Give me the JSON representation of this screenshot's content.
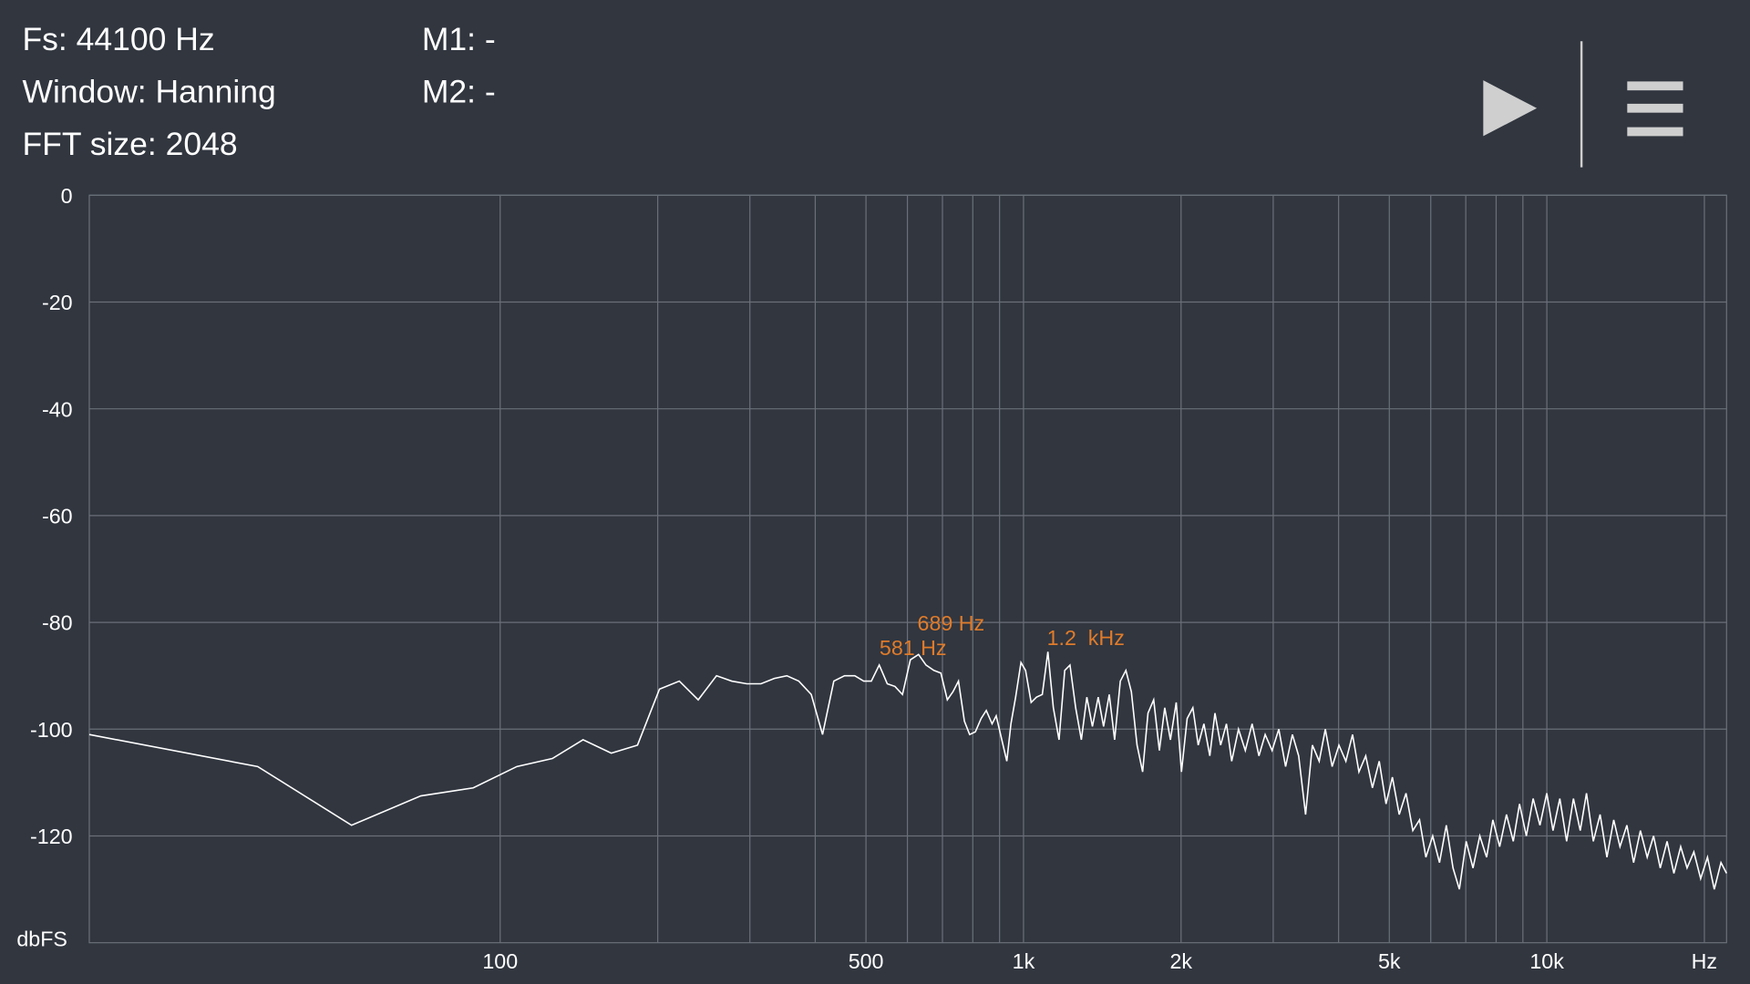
{
  "info": {
    "fs": "Fs: 44100 Hz",
    "window": "Window: Hanning",
    "fft_size": "FFT size: 2048",
    "m1": "M1: -",
    "m2": "M2: -"
  },
  "chart_data": {
    "type": "line",
    "color": "#ffffff",
    "log_x": true,
    "grid": true,
    "x_label": "Hz",
    "y_label": "dbFS",
    "xlim": [
      16.4,
      22050
    ],
    "ylim": [
      -140,
      0
    ],
    "xticks": [
      100,
      500,
      {
        "value": 1000,
        "label": "1k"
      },
      {
        "value": 2000,
        "label": "2k"
      },
      {
        "value": 5000,
        "label": "5k"
      },
      {
        "value": 10000,
        "label": "10k"
      }
    ],
    "xminor": [
      200,
      300,
      400,
      600,
      700,
      800,
      900,
      3000,
      4000,
      6000,
      7000,
      8000,
      9000,
      20000
    ],
    "yticks": [
      0,
      -20,
      -40,
      -60,
      -80,
      -100,
      -120
    ],
    "annotations": [
      "689 Hz",
      "581 Hz",
      "1.2  kHz"
    ],
    "x": [
      16.4,
      34.4,
      52,
      70.5,
      88.8,
      107.6,
      125.8,
      144,
      163,
      183,
      201.6,
      220,
      239,
      259,
      277,
      296,
      315,
      334,
      353,
      372,
      393,
      413,
      434,
      455,
      476,
      495,
      512,
      530,
      549,
      568,
      587,
      608,
      630,
      651,
      674,
      695,
      715,
      733,
      751,
      771,
      789,
      809,
      830,
      849,
      871,
      887,
      929,
      946,
      966,
      989,
      1009,
      1034,
      1059,
      1086,
      1113,
      1140,
      1169,
      1199,
      1227,
      1258,
      1290,
      1321,
      1354,
      1389,
      1422,
      1458,
      1493,
      1531,
      1569,
      1607,
      1648,
      1689,
      1729,
      1773,
      1818,
      1861,
      1909,
      1958,
      2004,
      2055,
      2107,
      2157,
      2212,
      2270,
      2322,
      2381,
      2442,
      2499,
      2575,
      2654,
      2734,
      2818,
      2896,
      2985,
      3075,
      3168,
      3265,
      3355,
      3459,
      3564,
      3672,
      3774,
      3888,
      4007,
      4130,
      4254,
      4374,
      4507,
      4643,
      4784,
      4930,
      5068,
      5222,
      5381,
      5545,
      5712,
      5873,
      6052,
      6235,
      6424,
      6619,
      6806,
      7013,
      7226,
      7444,
      7670,
      7885,
      8126,
      8372,
      8626,
      8869,
      9138,
      9415,
      9702,
      9996,
      10276,
      10589,
      10911,
      11242,
      11583,
      11908,
      12270,
      12643,
      13027,
      13423,
      13799,
      14219,
      14650,
      15095,
      15554,
      15990,
      16475,
      16976,
      17492,
      18024,
      18529,
      19091,
      19672,
      20270,
      20886,
      21520,
      22050
    ],
    "values": [
      -101,
      -107,
      -118,
      -112.5,
      -111,
      -107,
      -105.5,
      -102,
      -104.5,
      -103,
      -92.5,
      -91,
      -94.5,
      -90,
      -91,
      -91.5,
      -91.5,
      -90.5,
      -90,
      -91,
      -93.5,
      -101,
      -91,
      -90,
      -90,
      -91,
      -91,
      -88,
      -91.5,
      -92,
      -93.5,
      -87,
      -86,
      -88,
      -89,
      -89.5,
      -94.5,
      -93,
      -91,
      -98.5,
      -101,
      -100.5,
      -98,
      -96.5,
      -99,
      -97.5,
      -106,
      -99,
      -94,
      -87.5,
      -89,
      -95,
      -94,
      -93.5,
      -85.5,
      -96,
      -102,
      -89,
      -88,
      -96,
      -102,
      -94,
      -99.5,
      -94,
      -99.5,
      -93.5,
      -102,
      -91,
      -89,
      -93,
      -103,
      -108,
      -97,
      -94.5,
      -104,
      -96,
      -102,
      -95,
      -108,
      -98,
      -96,
      -103,
      -99,
      -105,
      -97,
      -103,
      -99,
      -106,
      -100,
      -104,
      -99,
      -105,
      -101,
      -104,
      -100,
      -107,
      -101,
      -105,
      -116,
      -103,
      -106,
      -100,
      -107,
      -103,
      -106,
      -101,
      -108,
      -105,
      -111,
      -106,
      -114,
      -109,
      -116,
      -112,
      -119,
      -117,
      -124,
      -120,
      -125,
      -118,
      -126,
      -130,
      -121,
      -126,
      -120,
      -124,
      -117,
      -122,
      -116,
      -121,
      -114,
      -120,
      -113,
      -118,
      -112,
      -119,
      -113,
      -121,
      -113,
      -119,
      -112,
      -121,
      -116,
      -124,
      -117,
      -122,
      -118,
      -125,
      -119,
      -124,
      -120,
      -126,
      -121,
      -127,
      -122,
      -126,
      -123,
      -128,
      -124,
      -130,
      -125,
      -127
    ]
  }
}
